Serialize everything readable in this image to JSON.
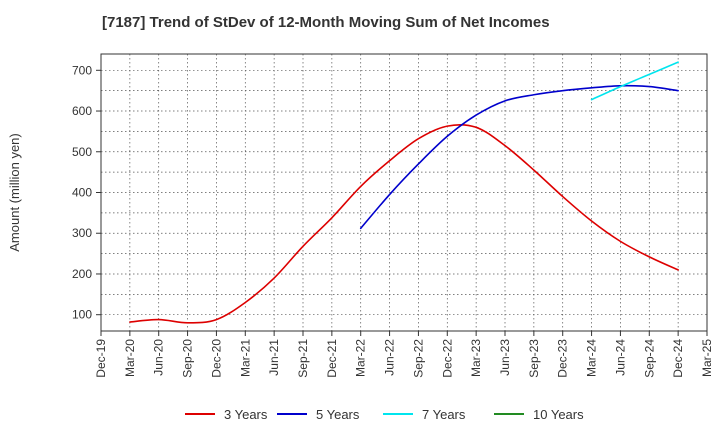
{
  "chart_data": {
    "type": "line",
    "title": "[7187]  Trend of StDev of 12-Month Moving Sum of Net Incomes",
    "ylabel": "Amount (million yen)",
    "xlabel": "",
    "ylim": [
      60,
      740
    ],
    "yticks": [
      100,
      200,
      300,
      400,
      500,
      600,
      700
    ],
    "grid": true,
    "legend_position": "bottom",
    "x_categories": [
      "Dec-19",
      "Mar-20",
      "Jun-20",
      "Sep-20",
      "Dec-20",
      "Mar-21",
      "Jun-21",
      "Sep-21",
      "Dec-21",
      "Mar-22",
      "Jun-22",
      "Sep-22",
      "Dec-22",
      "Mar-23",
      "Jun-23",
      "Sep-23",
      "Dec-23",
      "Mar-24",
      "Jun-24",
      "Sep-24",
      "Dec-24",
      "Mar-25"
    ],
    "series": [
      {
        "name": "3 Years",
        "color": "#dd0000",
        "x": [
          "Mar-20",
          "Jun-20",
          "Sep-20",
          "Dec-20",
          "Mar-21",
          "Jun-21",
          "Sep-21",
          "Dec-21",
          "Mar-22",
          "Jun-22",
          "Sep-22",
          "Dec-22",
          "Mar-23",
          "Jun-23",
          "Sep-23",
          "Dec-23",
          "Mar-24",
          "Jun-24",
          "Sep-24",
          "Dec-24"
        ],
        "values": [
          82,
          88,
          80,
          88,
          130,
          190,
          268,
          338,
          415,
          478,
          532,
          563,
          560,
          515,
          455,
          390,
          330,
          280,
          242,
          210
        ]
      },
      {
        "name": "5 Years",
        "color": "#0000cc",
        "x": [
          "Mar-22",
          "Jun-22",
          "Sep-22",
          "Dec-22",
          "Mar-23",
          "Jun-23",
          "Sep-23",
          "Dec-23",
          "Mar-24",
          "Jun-24",
          "Sep-24",
          "Dec-24"
        ],
        "values": [
          312,
          395,
          470,
          538,
          590,
          625,
          640,
          650,
          657,
          662,
          660,
          650
        ]
      },
      {
        "name": "7 Years",
        "color": "#00e5ee",
        "x": [
          "Mar-24",
          "Jun-24",
          "Sep-24",
          "Dec-24"
        ],
        "values": [
          628,
          660,
          690,
          720
        ]
      },
      {
        "name": "10 Years",
        "color": "#228b22",
        "x": [],
        "values": []
      }
    ]
  }
}
